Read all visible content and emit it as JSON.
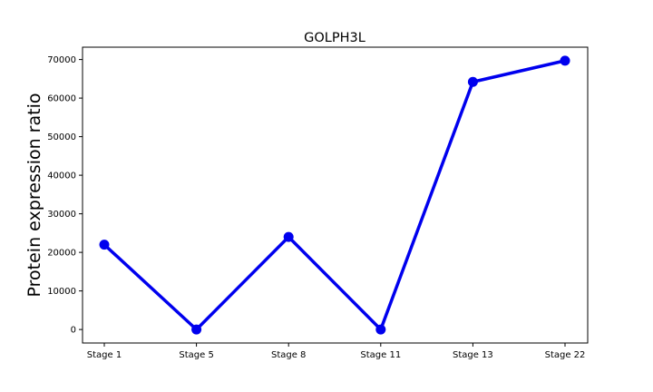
{
  "chart_data": {
    "type": "line",
    "title": "GOLPH3L",
    "xlabel": "",
    "ylabel": "Protein expression ratio",
    "categories": [
      "Stage 1",
      "Stage 5",
      "Stage 8",
      "Stage 11",
      "Stage 13",
      "Stage 22"
    ],
    "series": [
      {
        "values": [
          22000,
          0,
          24000,
          0,
          64200,
          69700
        ],
        "color": "#0000ee"
      }
    ],
    "ylim": [
      -3500,
      73200
    ],
    "yticks": [
      0,
      10000,
      20000,
      30000,
      40000,
      50000,
      60000,
      70000
    ],
    "ytick_labels": [
      "0",
      "10000",
      "20000",
      "30000",
      "40000",
      "50000",
      "60000",
      "70000"
    ],
    "grid": false,
    "legend": "none"
  }
}
